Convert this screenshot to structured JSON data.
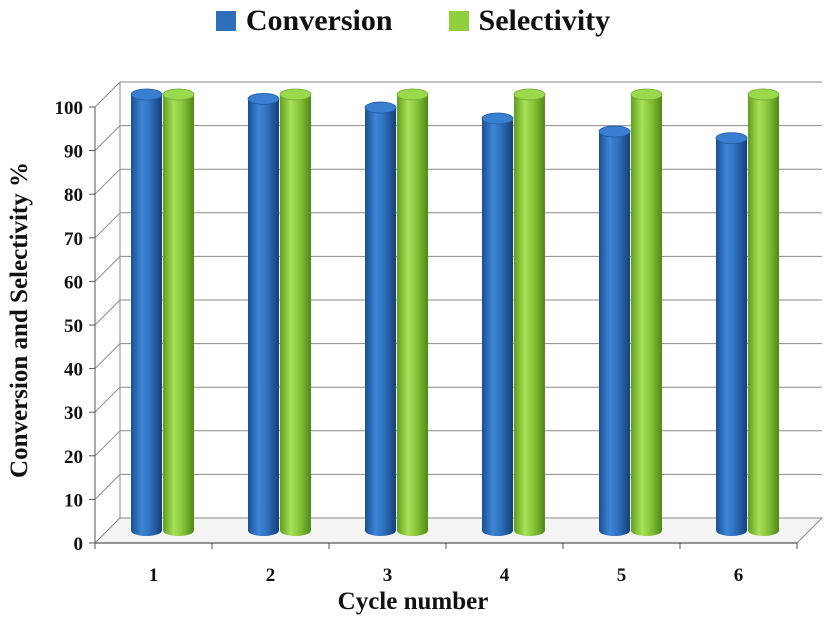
{
  "chart_data": {
    "type": "bar",
    "xlabel": "Cycle number",
    "ylabel": "Conversion and Selectivity %",
    "categories": [
      "1",
      "2",
      "3",
      "4",
      "5",
      "6"
    ],
    "series": [
      {
        "name": "Conversion",
        "values": [
          100,
          99,
          97,
          94.5,
          91.5,
          90
        ]
      },
      {
        "name": "Selectivity",
        "values": [
          100,
          100,
          100,
          100,
          100,
          100
        ]
      }
    ],
    "ylim": [
      0,
      100
    ],
    "yticks": [
      "0",
      "10",
      "20",
      "30",
      "40",
      "50",
      "60",
      "70",
      "80",
      "90",
      "100"
    ],
    "grid": true,
    "legend_position": "top-center",
    "colors": {
      "Conversion": "#2e6fbc",
      "Selectivity": "#8fcf3c"
    }
  }
}
